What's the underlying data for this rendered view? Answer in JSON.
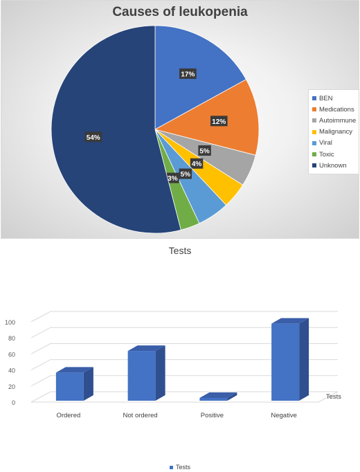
{
  "chart_data": [
    {
      "type": "pie",
      "title": "Causes of leukopenia",
      "categories": [
        "BEN",
        "Medications",
        "Autoimmune",
        "Malignancy",
        "Viral",
        "Toxic",
        "Unknown"
      ],
      "values": [
        17,
        12,
        5,
        4,
        5,
        3,
        54
      ],
      "labels": [
        "17%",
        "12%",
        "5%",
        "4%",
        "5%",
        "3%",
        "54%"
      ],
      "colors": [
        "#4472c4",
        "#ed7d31",
        "#a5a5a5",
        "#ffc000",
        "#5b9bd5",
        "#70ad47",
        "#264478"
      ],
      "legend_position": "right"
    },
    {
      "type": "bar",
      "title": "Tests",
      "categories": [
        "Ordered",
        "Not ordered",
        "Positive",
        "Negative"
      ],
      "series": [
        {
          "name": "Tests",
          "values": [
            35,
            62,
            2,
            96
          ],
          "color": "#4472c4"
        }
      ],
      "ylim": [
        0,
        100
      ],
      "yticks": [
        "0",
        "20",
        "40",
        "60",
        "80",
        "100"
      ],
      "depth_axis_label": "Tests",
      "grid": true,
      "legend_position": "bottom"
    }
  ]
}
